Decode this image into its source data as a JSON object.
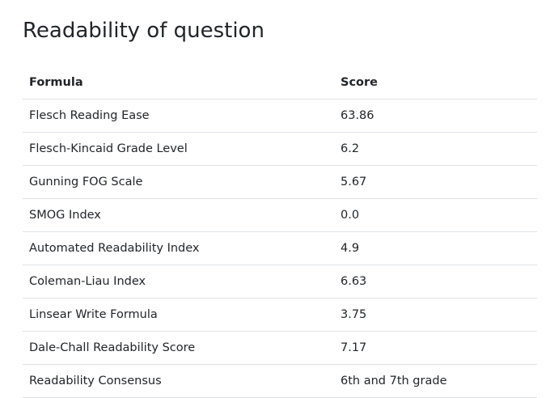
{
  "heading": "Readability of question",
  "table": {
    "headers": {
      "formula": "Formula",
      "score": "Score"
    },
    "rows": [
      {
        "formula": "Flesch Reading Ease",
        "score": "63.86"
      },
      {
        "formula": "Flesch-Kincaid Grade Level",
        "score": "6.2"
      },
      {
        "formula": "Gunning FOG Scale",
        "score": "5.67"
      },
      {
        "formula": "SMOG Index",
        "score": "0.0"
      },
      {
        "formula": "Automated Readability Index",
        "score": "4.9"
      },
      {
        "formula": "Coleman-Liau Index",
        "score": "6.63"
      },
      {
        "formula": "Linsear Write Formula",
        "score": "3.75"
      },
      {
        "formula": "Dale-Chall Readability Score",
        "score": "7.17"
      },
      {
        "formula": "Readability Consensus",
        "score": "6th and 7th grade"
      }
    ]
  }
}
